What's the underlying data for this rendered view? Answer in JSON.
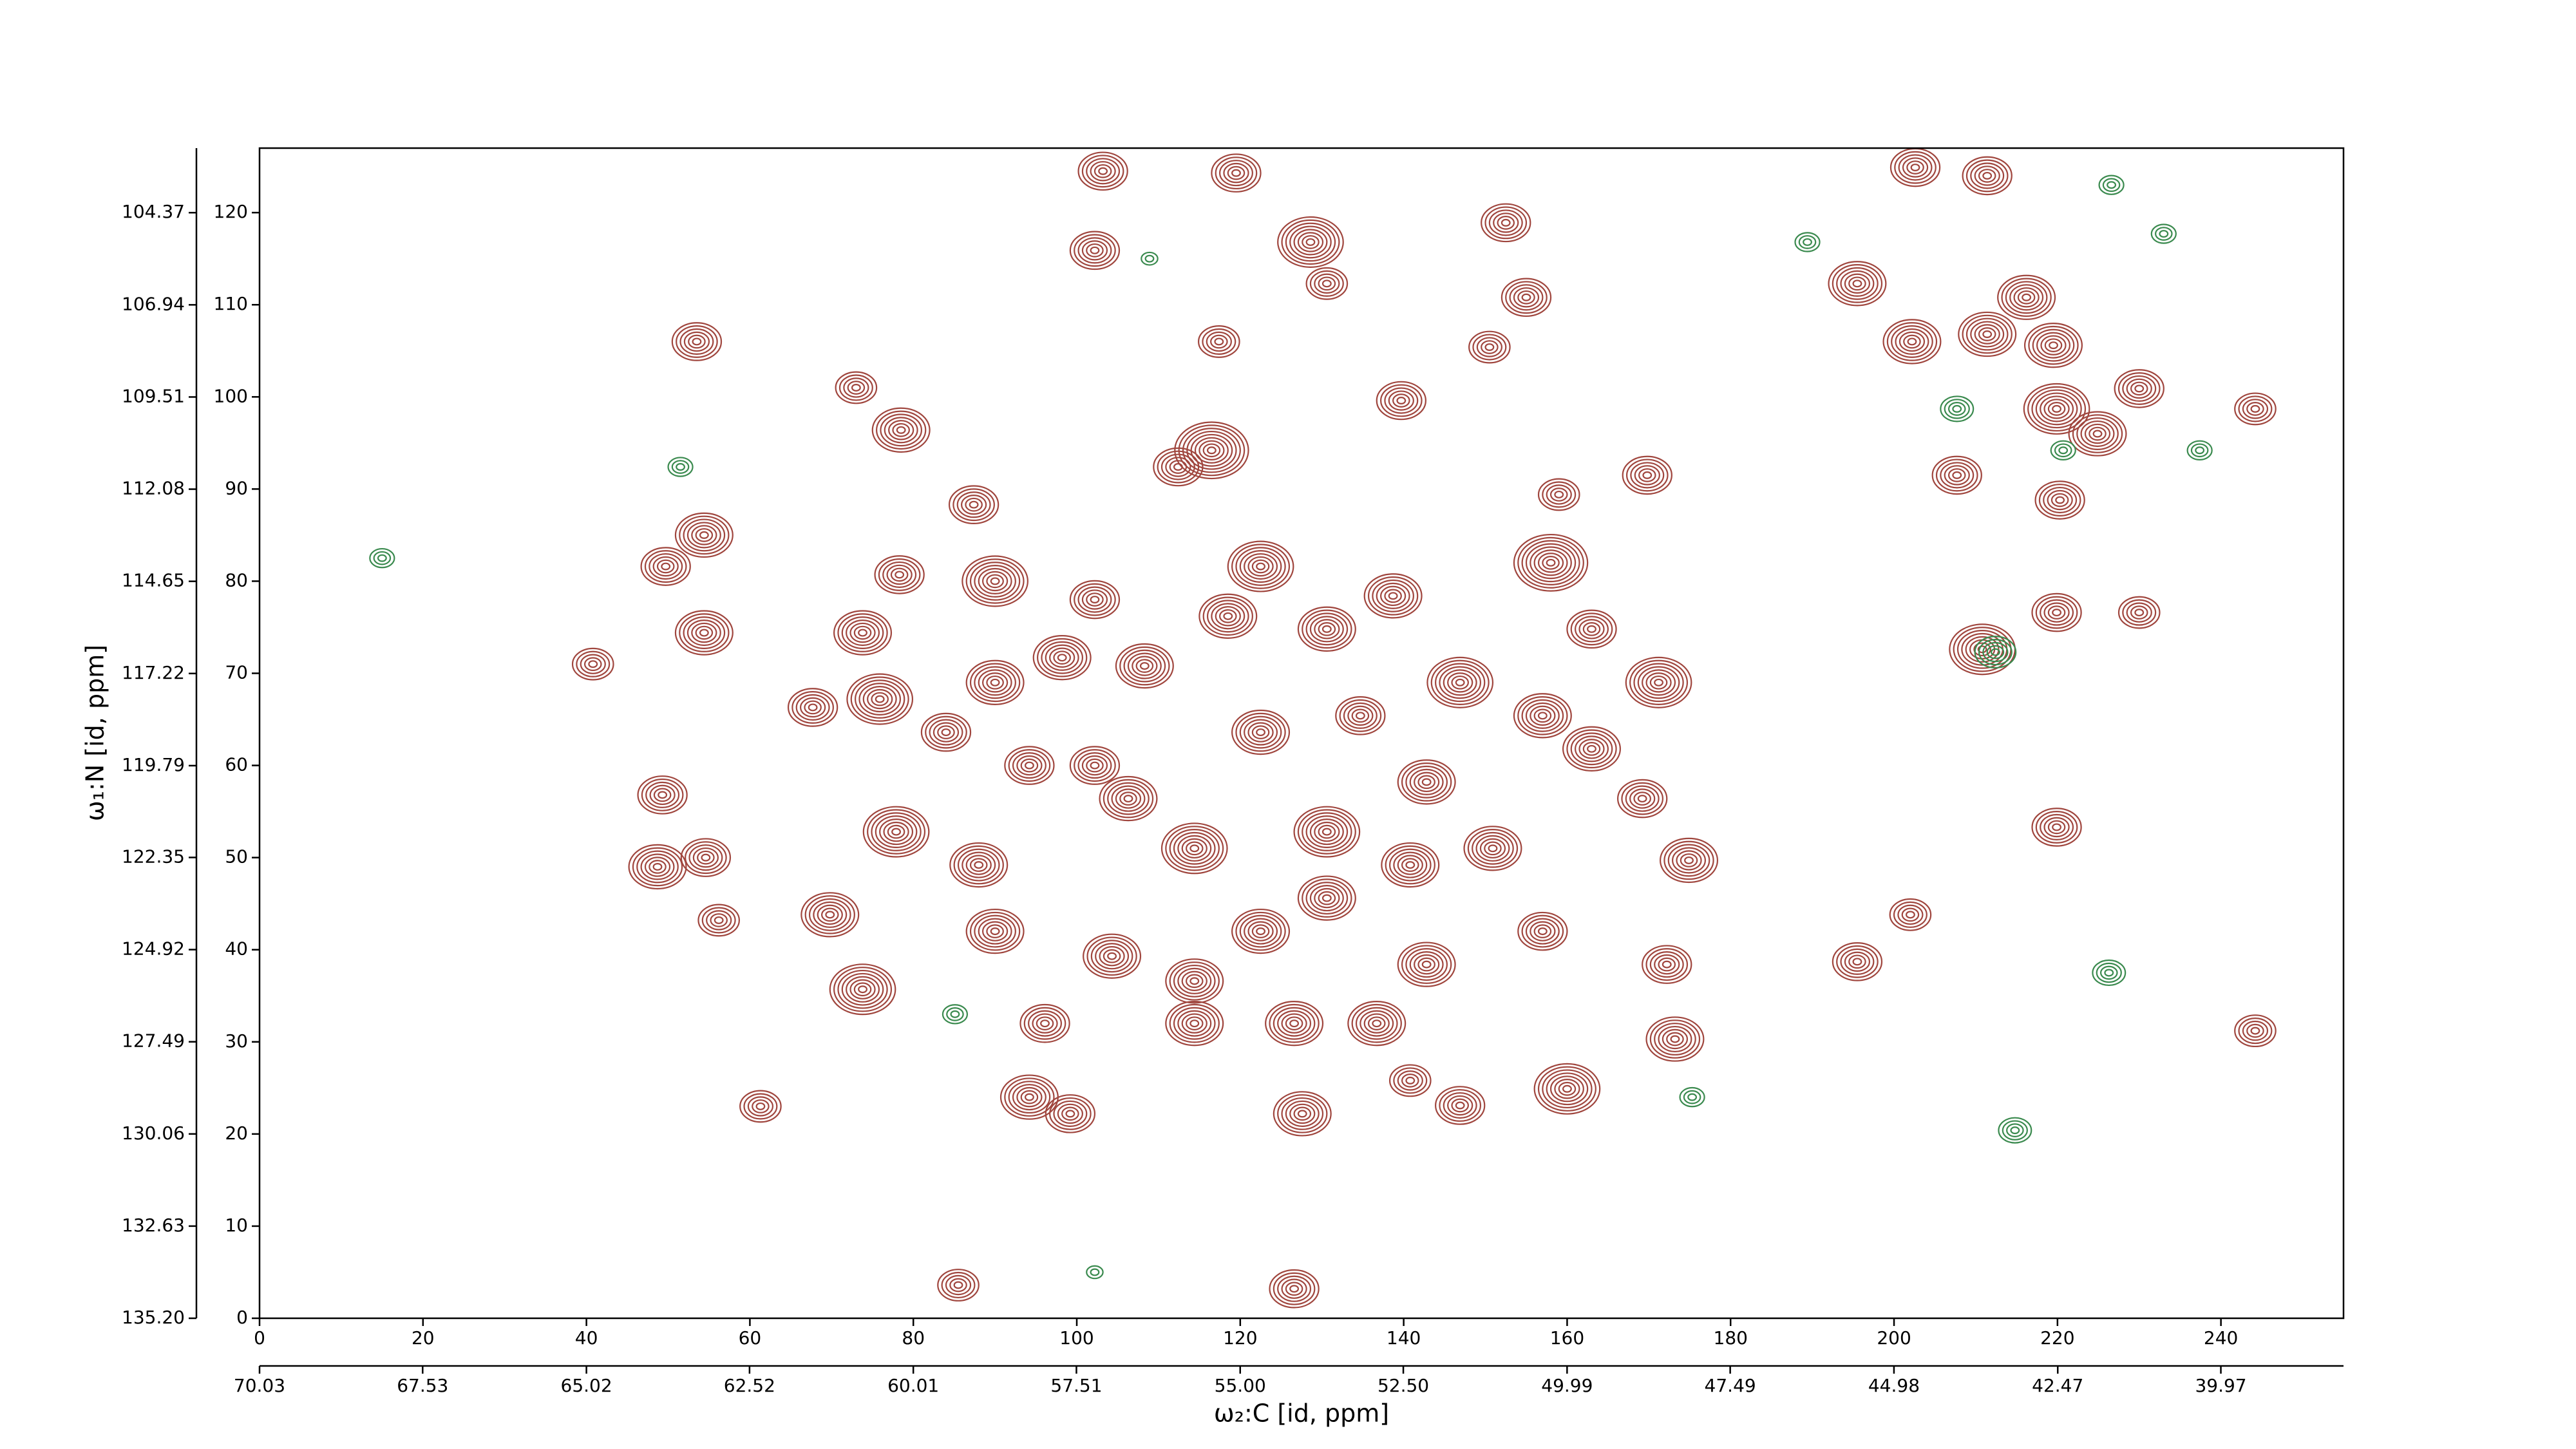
{
  "chart_data": {
    "type": "contour",
    "xlabel": "ω₂:C [id, ppm]",
    "ylabel": "ω₁:N [id, ppm]",
    "xlim": [
      0,
      255
    ],
    "ylim": [
      0,
      127
    ],
    "xticks": [
      0,
      20,
      40,
      60,
      80,
      100,
      120,
      140,
      160,
      180,
      200,
      220,
      240
    ],
    "yticks": [
      0,
      10,
      20,
      30,
      40,
      50,
      60,
      70,
      80,
      90,
      100,
      110,
      120
    ],
    "x2lim": [
      70.03,
      38.09
    ],
    "x2ticks": [
      70.03,
      67.53,
      65.02,
      62.52,
      60.01,
      57.51,
      {
        "value": 55,
        "label": "55.00"
      },
      {
        "value": 52.5,
        "label": "52.50"
      },
      49.99,
      47.49,
      44.98,
      42.47,
      39.97
    ],
    "y2lim": [
      135.2,
      102.57
    ],
    "y2ticks": [
      {
        "value": 135.2,
        "label": "135.20"
      },
      132.63,
      130.06,
      127.49,
      124.92,
      122.35,
      119.79,
      117.22,
      114.65,
      112.08,
      109.51,
      106.94,
      104.37
    ],
    "series": [
      {
        "color": "#a0463e",
        "x": [
          53.5,
          54.4,
          49.7,
          54.4,
          40.8,
          49.3,
          48.7,
          54.6,
          56.2,
          61.3,
          78.5,
          73,
          87.4,
          90,
          78.3,
          73.8,
          67.7,
          75.9,
          84,
          98.2,
          102.2,
          108.3,
          118.5,
          122.5,
          116.5,
          112.4,
          117.4,
          102.2,
          103.2,
          119.5,
          128.6,
          130.6,
          152.5,
          155,
          150.5,
          139.7,
          169.8,
          159,
          158,
          163,
          171.2,
          163,
          169.2,
          174.9,
          172.2,
          173.2,
          160,
          146.9,
          140.8,
          127.6,
          126.6,
          99.2,
          94.2,
          96.1,
          73.8,
          69.8,
          77.9,
          88,
          90,
          104.3,
          114.4,
          122.5,
          130.6,
          130.6,
          114.4,
          106.3,
          102.2,
          94.2,
          90,
          122.5,
          134.7,
          142.8,
          140.8,
          150.9,
          157,
          142.8,
          136.7,
          126.6,
          114.4,
          146.9,
          130.6,
          138.7,
          157,
          85.5,
          195.5,
          202.2,
          202.6,
          211.4,
          211.4,
          216.2,
          219.5,
          219.9,
          224.9,
          230,
          207.7,
          220.3,
          219.9,
          230,
          210.8,
          219.9,
          202,
          195.5,
          244.2,
          244.2
        ],
        "y": [
          106,
          85,
          81.6,
          74.4,
          71,
          56.8,
          49,
          50,
          43.2,
          23,
          96.4,
          101,
          88.3,
          80,
          80.7,
          74.4,
          66.3,
          67.2,
          63.6,
          71.7,
          78,
          70.8,
          76.2,
          81.6,
          94.2,
          92.4,
          106,
          115.9,
          124.5,
          124.3,
          116.8,
          112.3,
          118.9,
          110.8,
          105.4,
          99.6,
          91.5,
          89.4,
          82,
          74.8,
          69,
          61.8,
          56.4,
          49.7,
          38.4,
          30.3,
          24.9,
          23.1,
          25.8,
          22.2,
          3.2,
          22.2,
          24,
          32,
          35.7,
          43.8,
          52.8,
          49.2,
          42,
          39.3,
          36.6,
          42,
          45.6,
          52.8,
          51,
          56.4,
          60,
          60,
          69,
          63.6,
          65.4,
          58.2,
          49.2,
          51,
          42,
          38.4,
          32,
          32,
          32,
          69,
          74.8,
          78.4,
          65.4,
          3.6,
          112.3,
          106,
          124.9,
          124,
          106.8,
          110.8,
          105.6,
          98.7,
          96,
          100.9,
          91.5,
          88.8,
          76.6,
          76.6,
          72.6,
          53.3,
          43.8,
          38.7,
          31.2,
          98.7
        ],
        "levels": [
          6,
          7,
          6,
          7,
          5,
          6,
          7,
          6,
          5,
          5,
          7,
          5,
          6,
          8,
          6,
          7,
          6,
          8,
          6,
          7,
          6,
          7,
          7,
          8,
          9,
          6,
          5,
          6,
          6,
          6,
          8,
          5,
          6,
          6,
          5,
          6,
          6,
          5,
          9,
          6,
          8,
          7,
          6,
          7,
          6,
          7,
          8,
          6,
          5,
          7,
          6,
          6,
          7,
          6,
          8,
          7,
          8,
          7,
          7,
          7,
          7,
          7,
          7,
          8,
          8,
          7,
          6,
          6,
          7,
          7,
          6,
          7,
          7,
          7,
          6,
          7,
          7,
          7,
          7,
          8,
          7,
          7,
          7,
          5,
          7,
          7,
          6,
          6,
          7,
          7,
          7,
          8,
          7,
          6,
          6,
          6,
          6,
          5,
          8,
          6,
          5,
          6,
          5,
          5
        ]
      },
      {
        "color": "#3a8a4e",
        "x": [
          212.4,
          226.3,
          175.3,
          214.8,
          233,
          189.4,
          226.6,
          51.5,
          15,
          108.9,
          85.1,
          102.2,
          220.7,
          237.4,
          207.7
        ],
        "y": [
          72.3,
          37.5,
          24,
          20.4,
          117.7,
          116.8,
          123,
          92.4,
          82.5,
          115,
          33,
          5,
          94.2,
          94.2,
          98.7
        ],
        "levels": [
          5,
          4,
          3,
          4,
          3,
          3,
          3,
          3,
          3,
          2,
          3,
          2,
          3,
          3,
          4
        ]
      }
    ]
  }
}
